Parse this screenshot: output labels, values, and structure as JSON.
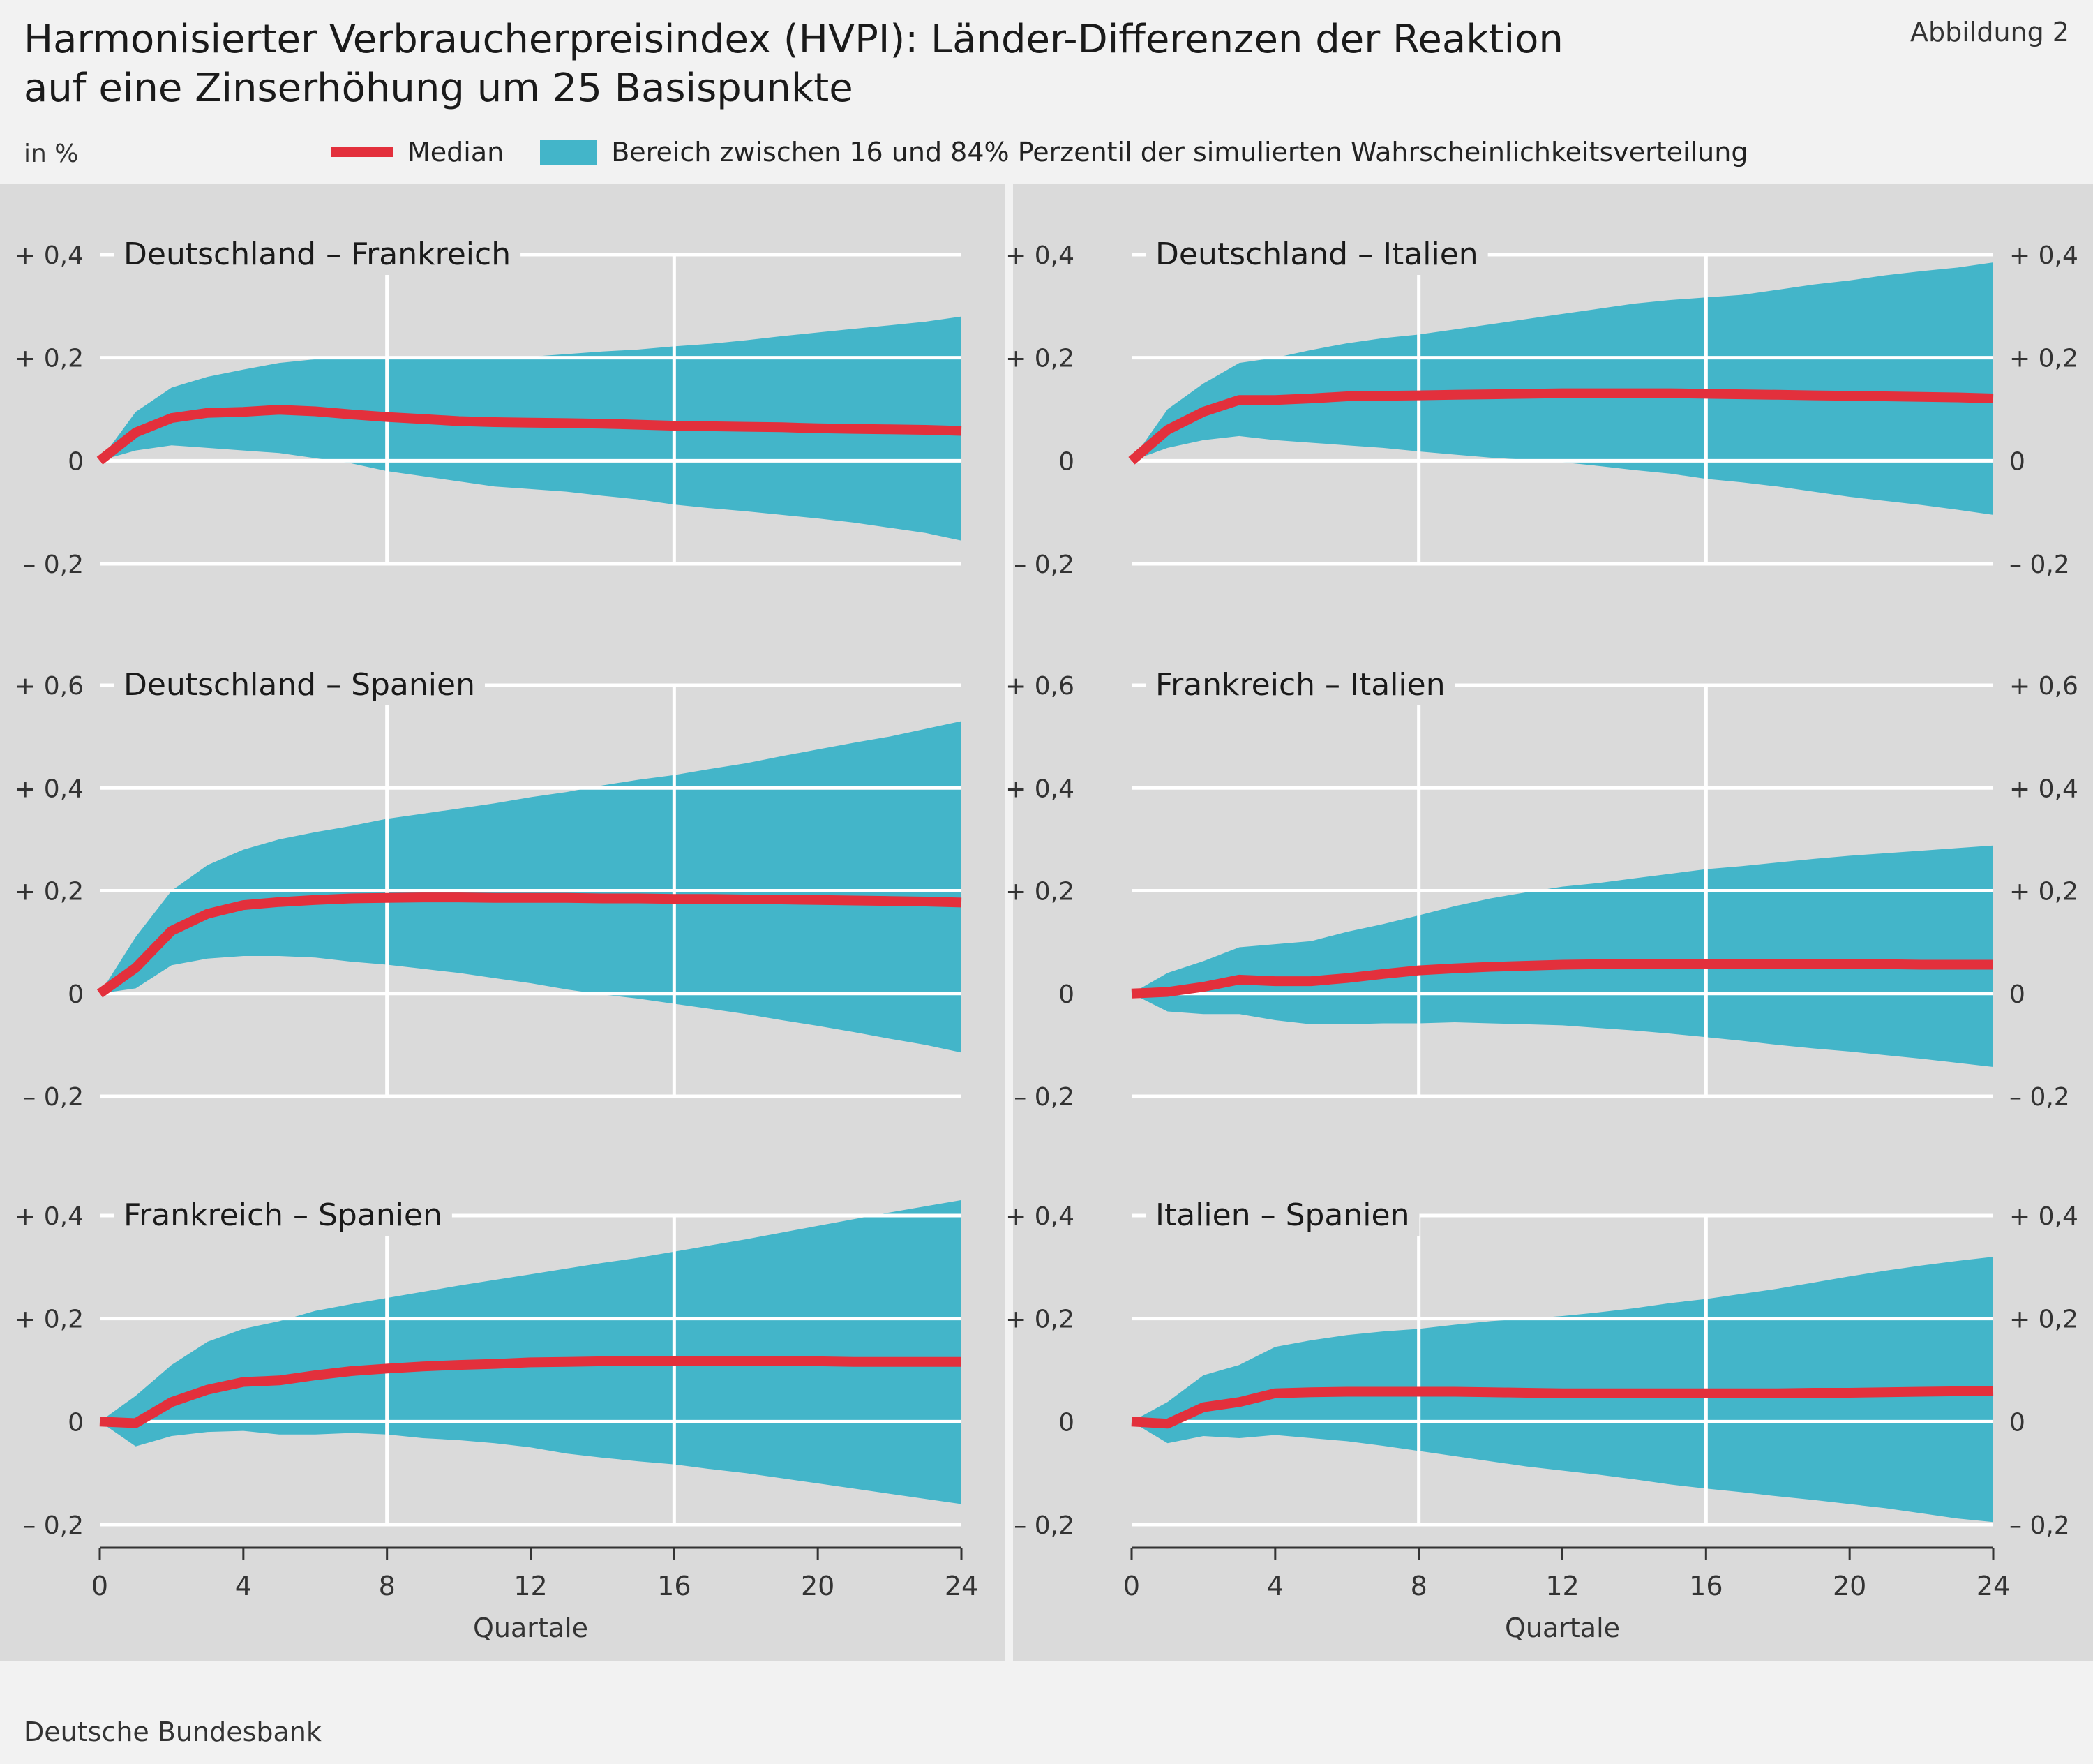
{
  "header": {
    "title_line1": "Harmonisierter Verbraucherpreisindex (HVPI): Länder-Differenzen der Reaktion",
    "title_line2": "auf eine Zinserhöhung um 25 Basispunkte",
    "figure_number": "Abbildung 2",
    "unit": "in %"
  },
  "legend": {
    "median": "Median",
    "band": "Bereich zwischen 16 und 84% Perzentil der simulierten Wahrscheinlichkeitsverteilung"
  },
  "footer": {
    "source": "Deutsche Bundesbank"
  },
  "colors": {
    "median": "#e3303c",
    "band": "#43b5c9",
    "panel_bg": "#dadada",
    "grid": "#ffffff"
  },
  "chart_data": [
    {
      "type": "area",
      "title": "Deutschland – Frankreich",
      "xlabel": "",
      "xlim": [
        0,
        24
      ],
      "xticks": [
        0,
        4,
        8,
        12,
        16,
        20,
        24
      ],
      "ylim": [
        -0.2,
        0.4
      ],
      "yticks": [
        -0.2,
        0,
        0.2,
        0.4
      ],
      "ytick_labels": [
        "– 0,2",
        "0",
        "+ 0,2",
        "+ 0,4"
      ],
      "x": [
        0,
        1,
        2,
        3,
        4,
        5,
        6,
        7,
        8,
        9,
        10,
        11,
        12,
        13,
        14,
        15,
        16,
        17,
        18,
        19,
        20,
        21,
        22,
        23,
        24
      ],
      "series": [
        {
          "name": "Median",
          "values": [
            0,
            0.055,
            0.083,
            0.093,
            0.095,
            0.099,
            0.096,
            0.09,
            0.085,
            0.081,
            0.077,
            0.075,
            0.074,
            0.073,
            0.072,
            0.07,
            0.068,
            0.067,
            0.066,
            0.065,
            0.063,
            0.062,
            0.061,
            0.06,
            0.058
          ]
        },
        {
          "name": "p16",
          "values": [
            0,
            0.02,
            0.03,
            0.025,
            0.02,
            0.015,
            0.005,
            -0.005,
            -0.02,
            -0.03,
            -0.04,
            -0.05,
            -0.055,
            -0.06,
            -0.068,
            -0.075,
            -0.085,
            -0.092,
            -0.098,
            -0.105,
            -0.112,
            -0.12,
            -0.13,
            -0.14,
            -0.155
          ]
        },
        {
          "name": "p84",
          "values": [
            0,
            0.095,
            0.142,
            0.163,
            0.177,
            0.19,
            0.197,
            0.198,
            0.198,
            0.198,
            0.198,
            0.198,
            0.202,
            0.207,
            0.212,
            0.216,
            0.222,
            0.227,
            0.234,
            0.242,
            0.249,
            0.256,
            0.263,
            0.27,
            0.28
          ]
        }
      ]
    },
    {
      "type": "area",
      "title": "Deutschland – Italien",
      "xlabel": "",
      "xlim": [
        0,
        24
      ],
      "xticks": [
        0,
        4,
        8,
        12,
        16,
        20,
        24
      ],
      "ylim": [
        -0.2,
        0.4
      ],
      "yticks": [
        -0.2,
        0,
        0.2,
        0.4
      ],
      "ytick_labels": [
        "– 0,2",
        "0",
        "+ 0,2",
        "+ 0,4"
      ],
      "x": [
        0,
        1,
        2,
        3,
        4,
        5,
        6,
        7,
        8,
        9,
        10,
        11,
        12,
        13,
        14,
        15,
        16,
        17,
        18,
        19,
        20,
        21,
        22,
        23,
        24
      ],
      "series": [
        {
          "name": "Median",
          "values": [
            0,
            0.06,
            0.095,
            0.118,
            0.118,
            0.121,
            0.125,
            0.126,
            0.127,
            0.128,
            0.129,
            0.13,
            0.131,
            0.131,
            0.131,
            0.131,
            0.13,
            0.129,
            0.128,
            0.127,
            0.126,
            0.125,
            0.124,
            0.123,
            0.121
          ]
        },
        {
          "name": "p16",
          "values": [
            0,
            0.025,
            0.04,
            0.048,
            0.04,
            0.035,
            0.03,
            0.025,
            0.018,
            0.012,
            0.006,
            0.002,
            -0.003,
            -0.01,
            -0.018,
            -0.025,
            -0.035,
            -0.042,
            -0.05,
            -0.06,
            -0.07,
            -0.078,
            -0.086,
            -0.095,
            -0.105
          ]
        },
        {
          "name": "p84",
          "values": [
            0,
            0.1,
            0.15,
            0.19,
            0.2,
            0.215,
            0.228,
            0.238,
            0.245,
            0.255,
            0.265,
            0.275,
            0.285,
            0.295,
            0.305,
            0.312,
            0.317,
            0.322,
            0.332,
            0.342,
            0.35,
            0.36,
            0.368,
            0.375,
            0.385
          ]
        }
      ]
    },
    {
      "type": "area",
      "title": "Deutschland – Spanien",
      "xlabel": "",
      "xlim": [
        0,
        24
      ],
      "xticks": [
        0,
        4,
        8,
        12,
        16,
        20,
        24
      ],
      "ylim": [
        -0.2,
        0.6
      ],
      "yticks": [
        -0.2,
        0,
        0.2,
        0.4,
        0.6
      ],
      "ytick_labels": [
        "– 0,2",
        "0",
        "+ 0,2",
        "+ 0,4",
        "+ 0,6"
      ],
      "x": [
        0,
        1,
        2,
        3,
        4,
        5,
        6,
        7,
        8,
        9,
        10,
        11,
        12,
        13,
        14,
        15,
        16,
        17,
        18,
        19,
        20,
        21,
        22,
        23,
        24
      ],
      "series": [
        {
          "name": "Median",
          "values": [
            0,
            0.05,
            0.122,
            0.155,
            0.172,
            0.178,
            0.182,
            0.185,
            0.186,
            0.187,
            0.187,
            0.186,
            0.186,
            0.186,
            0.185,
            0.185,
            0.184,
            0.184,
            0.183,
            0.183,
            0.182,
            0.181,
            0.18,
            0.179,
            0.177
          ]
        },
        {
          "name": "p16",
          "values": [
            0,
            0.01,
            0.055,
            0.068,
            0.073,
            0.073,
            0.07,
            0.062,
            0.056,
            0.048,
            0.04,
            0.03,
            0.02,
            0.008,
            -0.002,
            -0.01,
            -0.02,
            -0.03,
            -0.04,
            -0.052,
            -0.063,
            -0.075,
            -0.088,
            -0.1,
            -0.115
          ]
        },
        {
          "name": "p84",
          "values": [
            0,
            0.11,
            0.2,
            0.25,
            0.28,
            0.3,
            0.314,
            0.326,
            0.34,
            0.35,
            0.36,
            0.37,
            0.382,
            0.392,
            0.405,
            0.416,
            0.425,
            0.437,
            0.448,
            0.462,
            0.475,
            0.488,
            0.5,
            0.515,
            0.53
          ]
        }
      ]
    },
    {
      "type": "area",
      "title": "Frankreich – Italien",
      "xlabel": "",
      "xlim": [
        0,
        24
      ],
      "xticks": [
        0,
        4,
        8,
        12,
        16,
        20,
        24
      ],
      "ylim": [
        -0.2,
        0.6
      ],
      "yticks": [
        -0.2,
        0,
        0.2,
        0.4,
        0.6
      ],
      "ytick_labels": [
        "– 0,2",
        "0",
        "+ 0,2",
        "+ 0,4",
        "+ 0,6"
      ],
      "x": [
        0,
        1,
        2,
        3,
        4,
        5,
        6,
        7,
        8,
        9,
        10,
        11,
        12,
        13,
        14,
        15,
        16,
        17,
        18,
        19,
        20,
        21,
        22,
        23,
        24
      ],
      "series": [
        {
          "name": "Median",
          "values": [
            0,
            0.003,
            0.013,
            0.027,
            0.024,
            0.024,
            0.03,
            0.038,
            0.045,
            0.049,
            0.052,
            0.054,
            0.056,
            0.057,
            0.057,
            0.058,
            0.058,
            0.058,
            0.058,
            0.057,
            0.057,
            0.057,
            0.056,
            0.056,
            0.056
          ]
        },
        {
          "name": "p16",
          "values": [
            0,
            -0.035,
            -0.04,
            -0.04,
            -0.052,
            -0.06,
            -0.06,
            -0.058,
            -0.058,
            -0.056,
            -0.058,
            -0.06,
            -0.062,
            -0.067,
            -0.072,
            -0.078,
            -0.085,
            -0.092,
            -0.1,
            -0.107,
            -0.113,
            -0.12,
            -0.127,
            -0.135,
            -0.143
          ]
        },
        {
          "name": "p84",
          "values": [
            0,
            0.04,
            0.063,
            0.09,
            0.096,
            0.102,
            0.12,
            0.135,
            0.152,
            0.17,
            0.185,
            0.197,
            0.208,
            0.215,
            0.224,
            0.233,
            0.242,
            0.248,
            0.255,
            0.262,
            0.268,
            0.273,
            0.278,
            0.283,
            0.288
          ]
        }
      ]
    },
    {
      "type": "area",
      "title": "Frankreich – Spanien",
      "xlabel": "Quartale",
      "xlim": [
        0,
        24
      ],
      "xticks": [
        0,
        4,
        8,
        12,
        16,
        20,
        24
      ],
      "ylim": [
        -0.2,
        0.4
      ],
      "yticks": [
        -0.2,
        0,
        0.2,
        0.4
      ],
      "ytick_labels": [
        "– 0,2",
        "0",
        "+ 0,2",
        "+ 0,4"
      ],
      "x": [
        0,
        1,
        2,
        3,
        4,
        5,
        6,
        7,
        8,
        9,
        10,
        11,
        12,
        13,
        14,
        15,
        16,
        17,
        18,
        19,
        20,
        21,
        22,
        23,
        24
      ],
      "series": [
        {
          "name": "Median",
          "values": [
            0,
            -0.003,
            0.038,
            0.062,
            0.077,
            0.08,
            0.09,
            0.098,
            0.103,
            0.107,
            0.11,
            0.112,
            0.115,
            0.116,
            0.117,
            0.117,
            0.117,
            0.118,
            0.117,
            0.117,
            0.117,
            0.116,
            0.116,
            0.116,
            0.116
          ]
        },
        {
          "name": "p16",
          "values": [
            0,
            -0.048,
            -0.028,
            -0.02,
            -0.018,
            -0.025,
            -0.025,
            -0.022,
            -0.025,
            -0.032,
            -0.036,
            -0.042,
            -0.05,
            -0.062,
            -0.07,
            -0.077,
            -0.083,
            -0.092,
            -0.1,
            -0.11,
            -0.12,
            -0.13,
            -0.14,
            -0.15,
            -0.16
          ]
        },
        {
          "name": "p84",
          "values": [
            0,
            0.05,
            0.11,
            0.155,
            0.18,
            0.195,
            0.215,
            0.228,
            0.24,
            0.252,
            0.264,
            0.275,
            0.286,
            0.297,
            0.308,
            0.318,
            0.33,
            0.342,
            0.354,
            0.367,
            0.38,
            0.393,
            0.406,
            0.418,
            0.43
          ]
        }
      ]
    },
    {
      "type": "area",
      "title": "Italien – Spanien",
      "xlabel": "Quartale",
      "xlim": [
        0,
        24
      ],
      "xticks": [
        0,
        4,
        8,
        12,
        16,
        20,
        24
      ],
      "ylim": [
        -0.2,
        0.4
      ],
      "yticks": [
        -0.2,
        0,
        0.2,
        0.4
      ],
      "ytick_labels": [
        "– 0,2",
        "0",
        "+ 0,2",
        "+ 0,4"
      ],
      "x": [
        0,
        1,
        2,
        3,
        4,
        5,
        6,
        7,
        8,
        9,
        10,
        11,
        12,
        13,
        14,
        15,
        16,
        17,
        18,
        19,
        20,
        21,
        22,
        23,
        24
      ],
      "series": [
        {
          "name": "Median",
          "values": [
            0,
            -0.004,
            0.028,
            0.038,
            0.055,
            0.057,
            0.058,
            0.058,
            0.058,
            0.058,
            0.057,
            0.056,
            0.055,
            0.055,
            0.055,
            0.055,
            0.055,
            0.055,
            0.055,
            0.056,
            0.056,
            0.057,
            0.058,
            0.059,
            0.06
          ]
        },
        {
          "name": "p16",
          "values": [
            0,
            -0.042,
            -0.028,
            -0.032,
            -0.026,
            -0.032,
            -0.038,
            -0.047,
            -0.057,
            -0.067,
            -0.077,
            -0.087,
            -0.095,
            -0.103,
            -0.112,
            -0.122,
            -0.13,
            -0.137,
            -0.145,
            -0.152,
            -0.16,
            -0.168,
            -0.178,
            -0.188,
            -0.195
          ]
        },
        {
          "name": "p84",
          "values": [
            0,
            0.038,
            0.09,
            0.11,
            0.145,
            0.158,
            0.168,
            0.175,
            0.18,
            0.188,
            0.195,
            0.2,
            0.205,
            0.212,
            0.22,
            0.23,
            0.238,
            0.248,
            0.258,
            0.27,
            0.282,
            0.293,
            0.303,
            0.312,
            0.32
          ]
        }
      ]
    }
  ]
}
